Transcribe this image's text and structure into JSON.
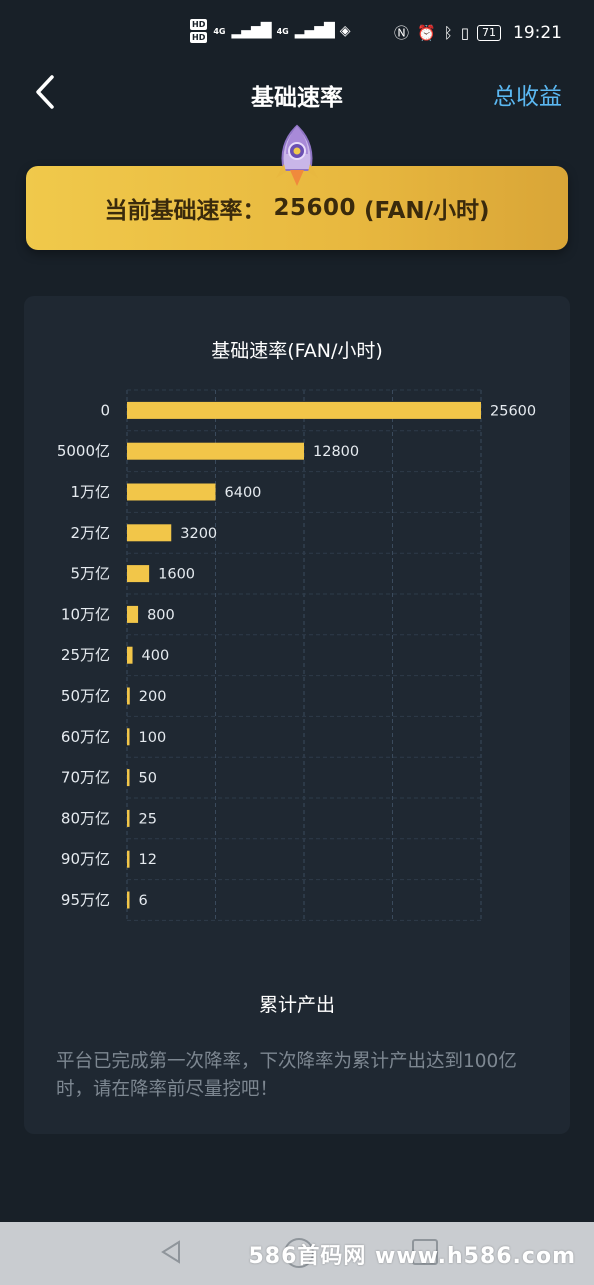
{
  "status_bar": {
    "hd1": "HD",
    "hd2": "HD",
    "net1": "4G",
    "net2": "4G",
    "battery": "71",
    "time": "19:21"
  },
  "nav": {
    "back_icon": "chevron-left-icon",
    "title": "基础速率",
    "action": "总收益"
  },
  "banner": {
    "label": "当前基础速率：",
    "value": "25600",
    "unit": "(FAN/小时)"
  },
  "chart_data": {
    "type": "bar",
    "orientation": "horizontal",
    "title": "基础速率(FAN/小时)",
    "categories": [
      "0",
      "5000亿",
      "1万亿",
      "2万亿",
      "5万亿",
      "10万亿",
      "25万亿",
      "50万亿",
      "60万亿",
      "70万亿",
      "80万亿",
      "90万亿",
      "95万亿"
    ],
    "values": [
      25600,
      12800,
      6400,
      3200,
      1600,
      800,
      400,
      200,
      100,
      50,
      25,
      12,
      6
    ],
    "xlim": [
      0,
      25600
    ],
    "grid": true,
    "bar_color": "#f2c649"
  },
  "section": {
    "title": "累计产出",
    "description": "平台已完成第一次降率，下次降率为累计产出达到100亿时，请在降率前尽量挖吧！"
  },
  "watermark": "586首码网 www.h586.com"
}
